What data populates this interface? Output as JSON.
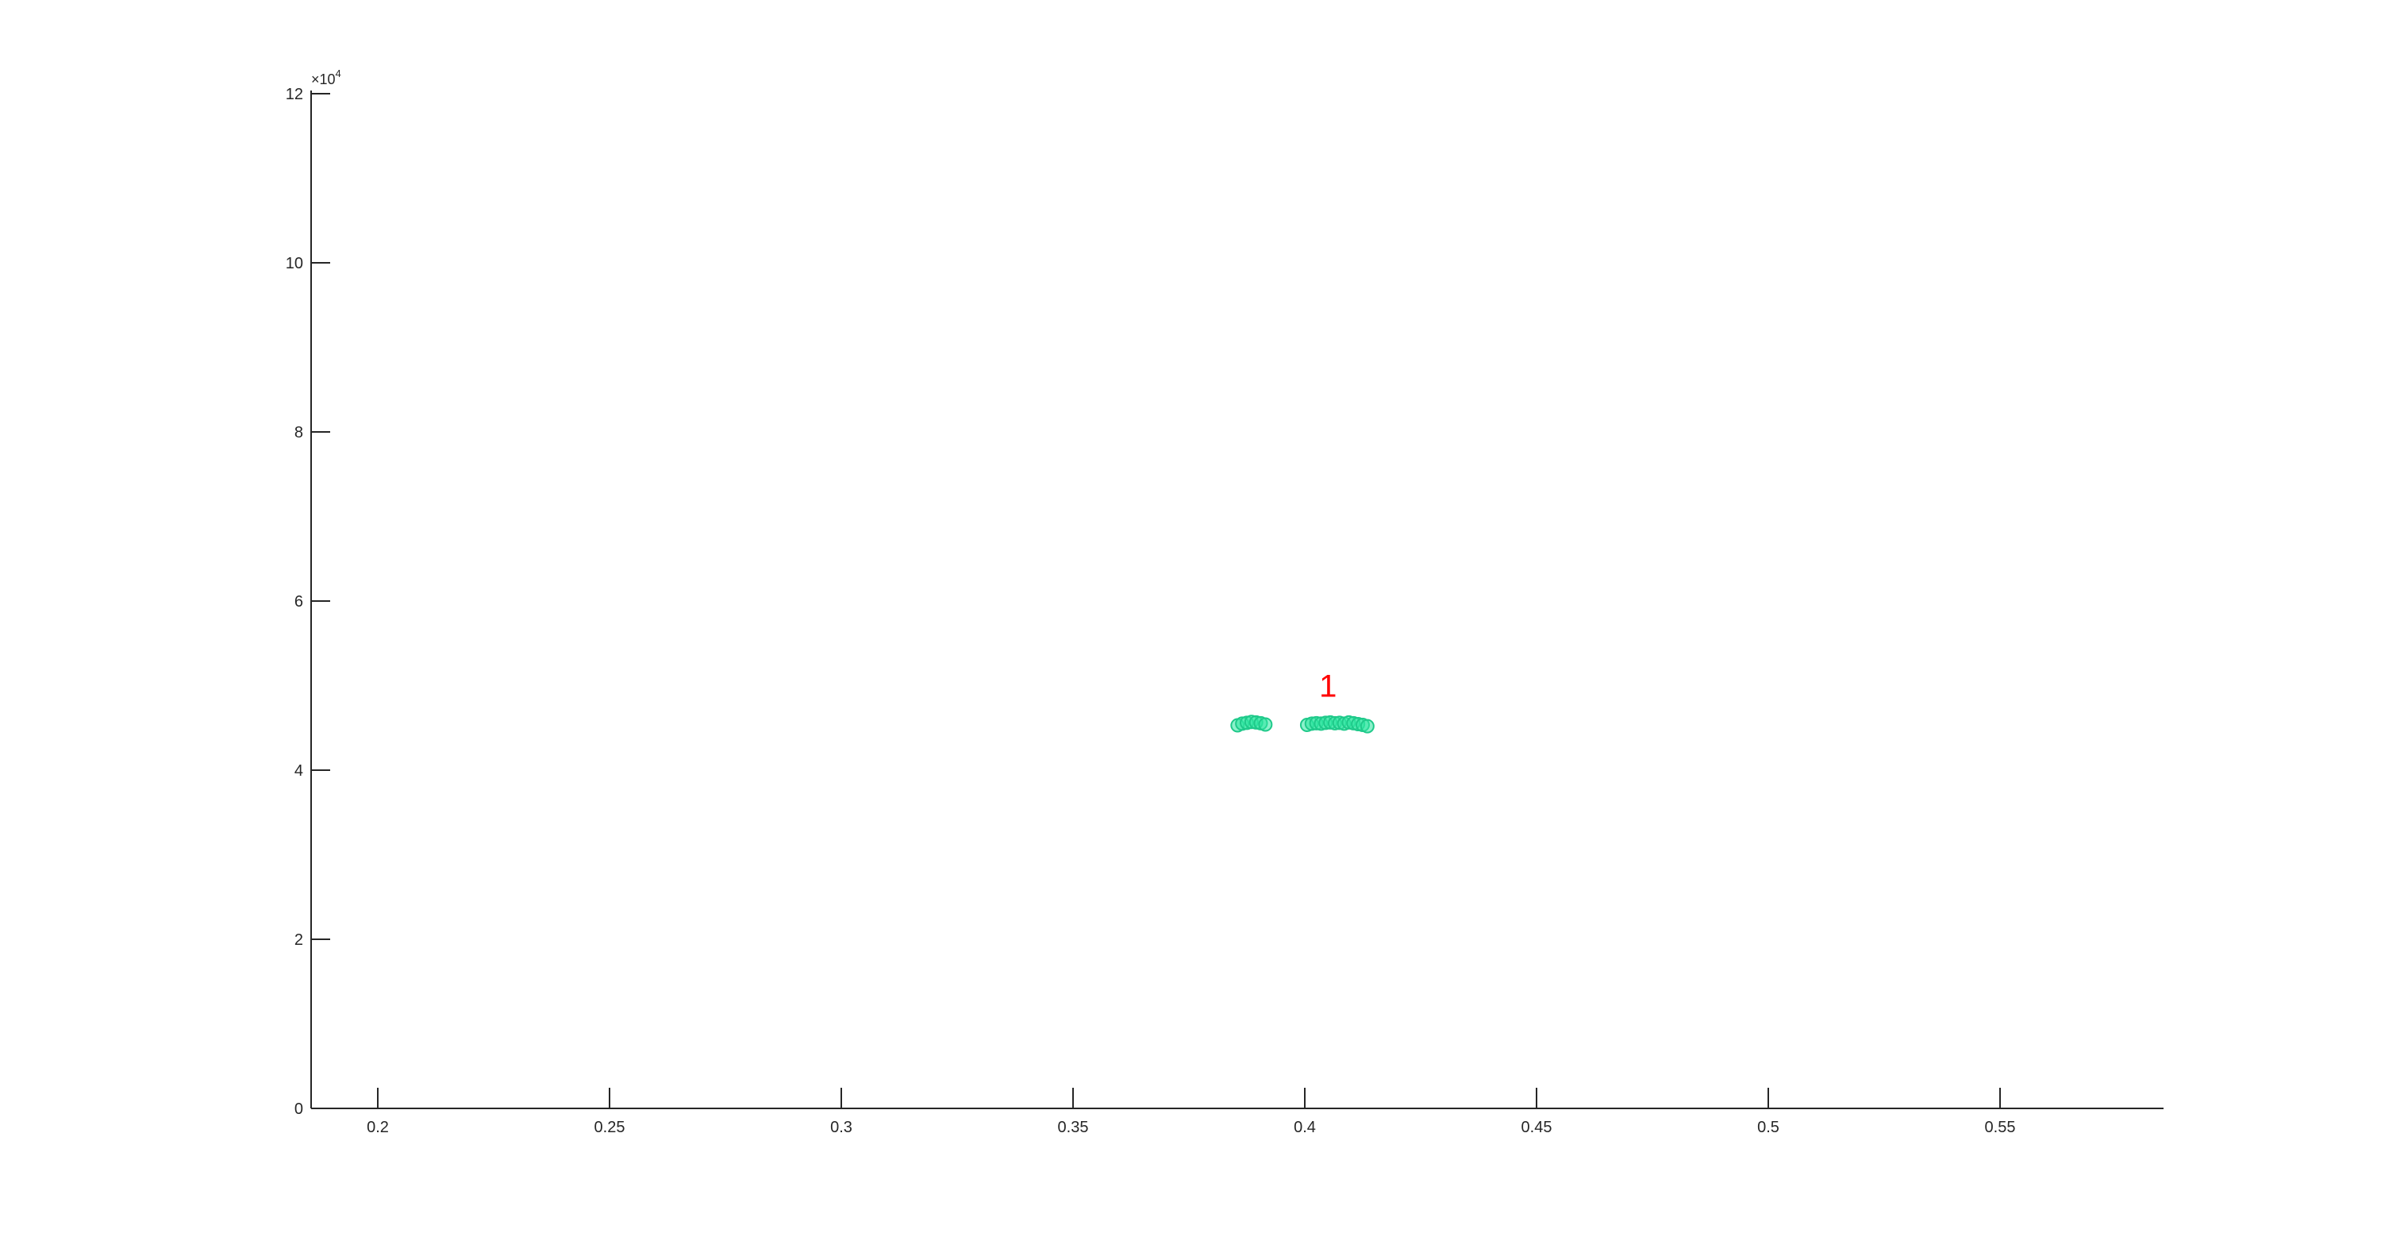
{
  "chart_data": {
    "type": "scatter",
    "title": "",
    "xlabel": "",
    "ylabel": "",
    "xlim": [
      0.185,
      0.585
    ],
    "ylim": [
      0,
      125000
    ],
    "x_ticks": [
      "0.2",
      "0.25",
      "0.3",
      "0.35",
      "0.4",
      "0.45",
      "0.5",
      "0.55"
    ],
    "y_ticks": [
      "0",
      "2",
      "4",
      "6",
      "8",
      "10",
      "12"
    ],
    "y_exponent_label": "×10",
    "y_exponent_power": "4",
    "grid": false,
    "colors": {
      "points": "#2ee6a0",
      "points_edge": "#1fc98a",
      "annotation": "#ff0000",
      "axis": "#262626"
    },
    "annotation": {
      "text": "1",
      "x": 0.405,
      "y": 50000
    },
    "series": [
      {
        "points": [
          [
            0.3855,
            45300
          ],
          [
            0.3865,
            45500
          ],
          [
            0.3875,
            45600
          ],
          [
            0.3885,
            45700
          ],
          [
            0.3895,
            45650
          ],
          [
            0.3905,
            45550
          ],
          [
            0.3915,
            45400
          ],
          [
            0.4005,
            45350
          ],
          [
            0.4015,
            45500
          ],
          [
            0.4025,
            45550
          ],
          [
            0.4035,
            45500
          ],
          [
            0.4045,
            45600
          ],
          [
            0.4055,
            45650
          ],
          [
            0.4065,
            45550
          ],
          [
            0.4075,
            45600
          ],
          [
            0.4085,
            45500
          ],
          [
            0.4095,
            45650
          ],
          [
            0.4105,
            45550
          ],
          [
            0.4115,
            45450
          ],
          [
            0.4125,
            45350
          ],
          [
            0.4135,
            45200
          ]
        ]
      }
    ]
  }
}
